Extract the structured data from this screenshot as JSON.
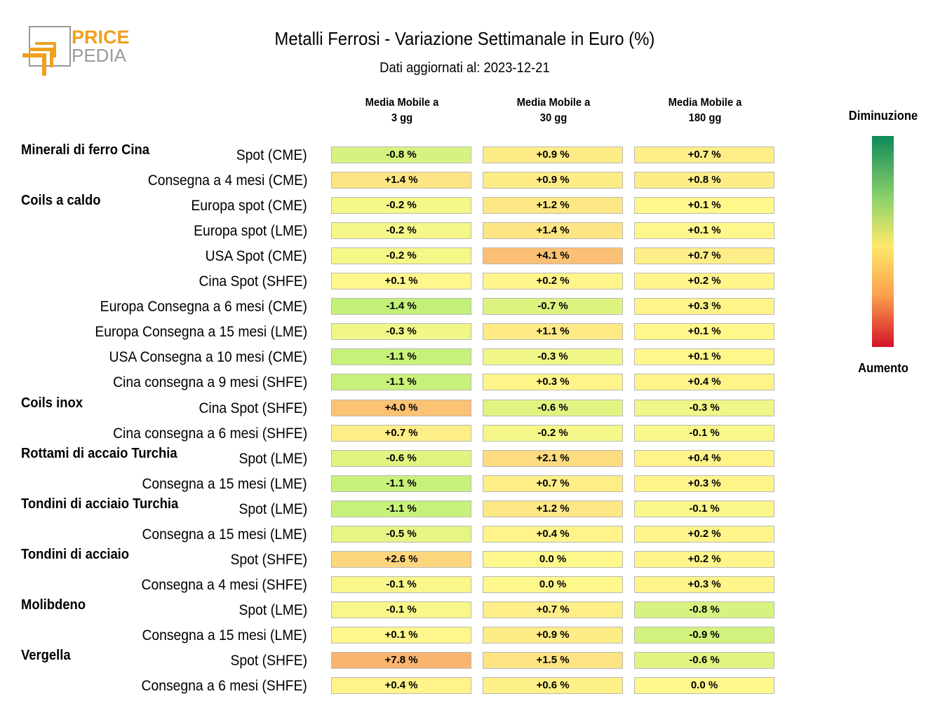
{
  "logo": {
    "line1": "PRICE",
    "line2": "PEDIA"
  },
  "title": "Metalli Ferrosi - Variazione Settimanale in Euro (%)",
  "subtitle": "Dati aggiornati al: 2023-12-21",
  "legend": {
    "top": "Diminuzione",
    "bottom": "Aumento"
  },
  "colors": {
    "brand_orange": "#f0a020",
    "brand_gray": "#9a9a9a",
    "cell_border": "#b9b9b9"
  },
  "chart_data": {
    "type": "table",
    "columns": [
      "Media Mobile a\n3 gg",
      "Media Mobile a\n30 gg",
      "Media Mobile a\n180 gg"
    ],
    "rows": [
      {
        "group": "Minerali di ferro Cina",
        "label": "Spot (CME)",
        "values": [
          -0.8,
          0.9,
          0.7
        ],
        "text": [
          "-0.8 %",
          "+0.9 %",
          "+0.7 %"
        ]
      },
      {
        "group": "",
        "label": "Consegna a 4 mesi (CME)",
        "values": [
          1.4,
          0.9,
          0.8
        ],
        "text": [
          "+1.4 %",
          "+0.9 %",
          "+0.8 %"
        ]
      },
      {
        "group": "Coils a caldo",
        "label": "Europa spot (CME)",
        "values": [
          -0.2,
          1.2,
          0.1
        ],
        "text": [
          "-0.2 %",
          "+1.2 %",
          "+0.1 %"
        ]
      },
      {
        "group": "",
        "label": "Europa spot (LME)",
        "values": [
          -0.2,
          1.4,
          0.1
        ],
        "text": [
          "-0.2 %",
          "+1.4 %",
          "+0.1 %"
        ]
      },
      {
        "group": "",
        "label": "USA Spot (CME)",
        "values": [
          -0.2,
          4.1,
          0.7
        ],
        "text": [
          "-0.2 %",
          "+4.1 %",
          "+0.7 %"
        ]
      },
      {
        "group": "",
        "label": "Cina Spot (SHFE)",
        "values": [
          0.1,
          0.2,
          0.2
        ],
        "text": [
          "+0.1 %",
          "+0.2 %",
          "+0.2 %"
        ]
      },
      {
        "group": "",
        "label": "Europa Consegna a 6 mesi (CME)",
        "values": [
          -1.4,
          -0.7,
          0.3
        ],
        "text": [
          "-1.4 %",
          "-0.7 %",
          "+0.3 %"
        ]
      },
      {
        "group": "",
        "label": "Europa Consegna a 15 mesi (LME)",
        "values": [
          -0.3,
          1.1,
          0.1
        ],
        "text": [
          "-0.3 %",
          "+1.1 %",
          "+0.1 %"
        ]
      },
      {
        "group": "",
        "label": "USA Consegna a 10 mesi (CME)",
        "values": [
          -1.1,
          -0.3,
          0.1
        ],
        "text": [
          "-1.1 %",
          "-0.3 %",
          "+0.1 %"
        ]
      },
      {
        "group": "",
        "label": "Cina consegna a 9 mesi (SHFE)",
        "values": [
          -1.1,
          0.3,
          0.4
        ],
        "text": [
          "-1.1 %",
          "+0.3 %",
          "+0.4 %"
        ]
      },
      {
        "group": "Coils inox",
        "label": "Cina Spot (SHFE)",
        "values": [
          4.0,
          -0.6,
          -0.3
        ],
        "text": [
          "+4.0 %",
          "-0.6 %",
          "-0.3 %"
        ]
      },
      {
        "group": "",
        "label": "Cina consegna a 6 mesi (SHFE)",
        "values": [
          0.7,
          -0.2,
          -0.1
        ],
        "text": [
          "+0.7 %",
          "-0.2 %",
          "-0.1 %"
        ]
      },
      {
        "group": "Rottami di accaio Turchia",
        "label": "Spot (LME)",
        "values": [
          -0.6,
          2.1,
          0.4
        ],
        "text": [
          "-0.6 %",
          "+2.1 %",
          "+0.4 %"
        ]
      },
      {
        "group": "",
        "label": "Consegna a 15 mesi (LME)",
        "values": [
          -1.1,
          0.7,
          0.3
        ],
        "text": [
          "-1.1 %",
          "+0.7 %",
          "+0.3 %"
        ]
      },
      {
        "group": "Tondini di acciaio Turchia",
        "label": "Spot (LME)",
        "values": [
          -1.1,
          1.2,
          -0.1
        ],
        "text": [
          "-1.1 %",
          "+1.2 %",
          "-0.1 %"
        ]
      },
      {
        "group": "",
        "label": "Consegna a 15 mesi (LME)",
        "values": [
          -0.5,
          0.4,
          0.2
        ],
        "text": [
          "-0.5 %",
          "+0.4 %",
          "+0.2 %"
        ]
      },
      {
        "group": "Tondini di acciaio",
        "label": "Spot (SHFE)",
        "values": [
          2.6,
          0.0,
          0.2
        ],
        "text": [
          "+2.6 %",
          "0.0 %",
          "+0.2 %"
        ]
      },
      {
        "group": "",
        "label": "Consegna a 4 mesi (SHFE)",
        "values": [
          -0.1,
          0.0,
          0.3
        ],
        "text": [
          "-0.1 %",
          "0.0 %",
          "+0.3 %"
        ]
      },
      {
        "group": "Molibdeno",
        "label": "Spot (LME)",
        "values": [
          -0.1,
          0.7,
          -0.8
        ],
        "text": [
          "-0.1 %",
          "+0.7 %",
          "-0.8 %"
        ]
      },
      {
        "group": "",
        "label": "Consegna a 15 mesi (LME)",
        "values": [
          0.1,
          0.9,
          -0.9
        ],
        "text": [
          "+0.1 %",
          "+0.9 %",
          "-0.9 %"
        ]
      },
      {
        "group": "Vergella",
        "label": "Spot (SHFE)",
        "values": [
          7.8,
          1.5,
          -0.6
        ],
        "text": [
          "+7.8 %",
          "+1.5 %",
          "-0.6 %"
        ]
      },
      {
        "group": "",
        "label": "Consegna a 6 mesi (SHFE)",
        "values": [
          0.4,
          0.6,
          0.0
        ],
        "text": [
          "+0.4 %",
          "+0.6 %",
          "0.0 %"
        ]
      }
    ]
  }
}
